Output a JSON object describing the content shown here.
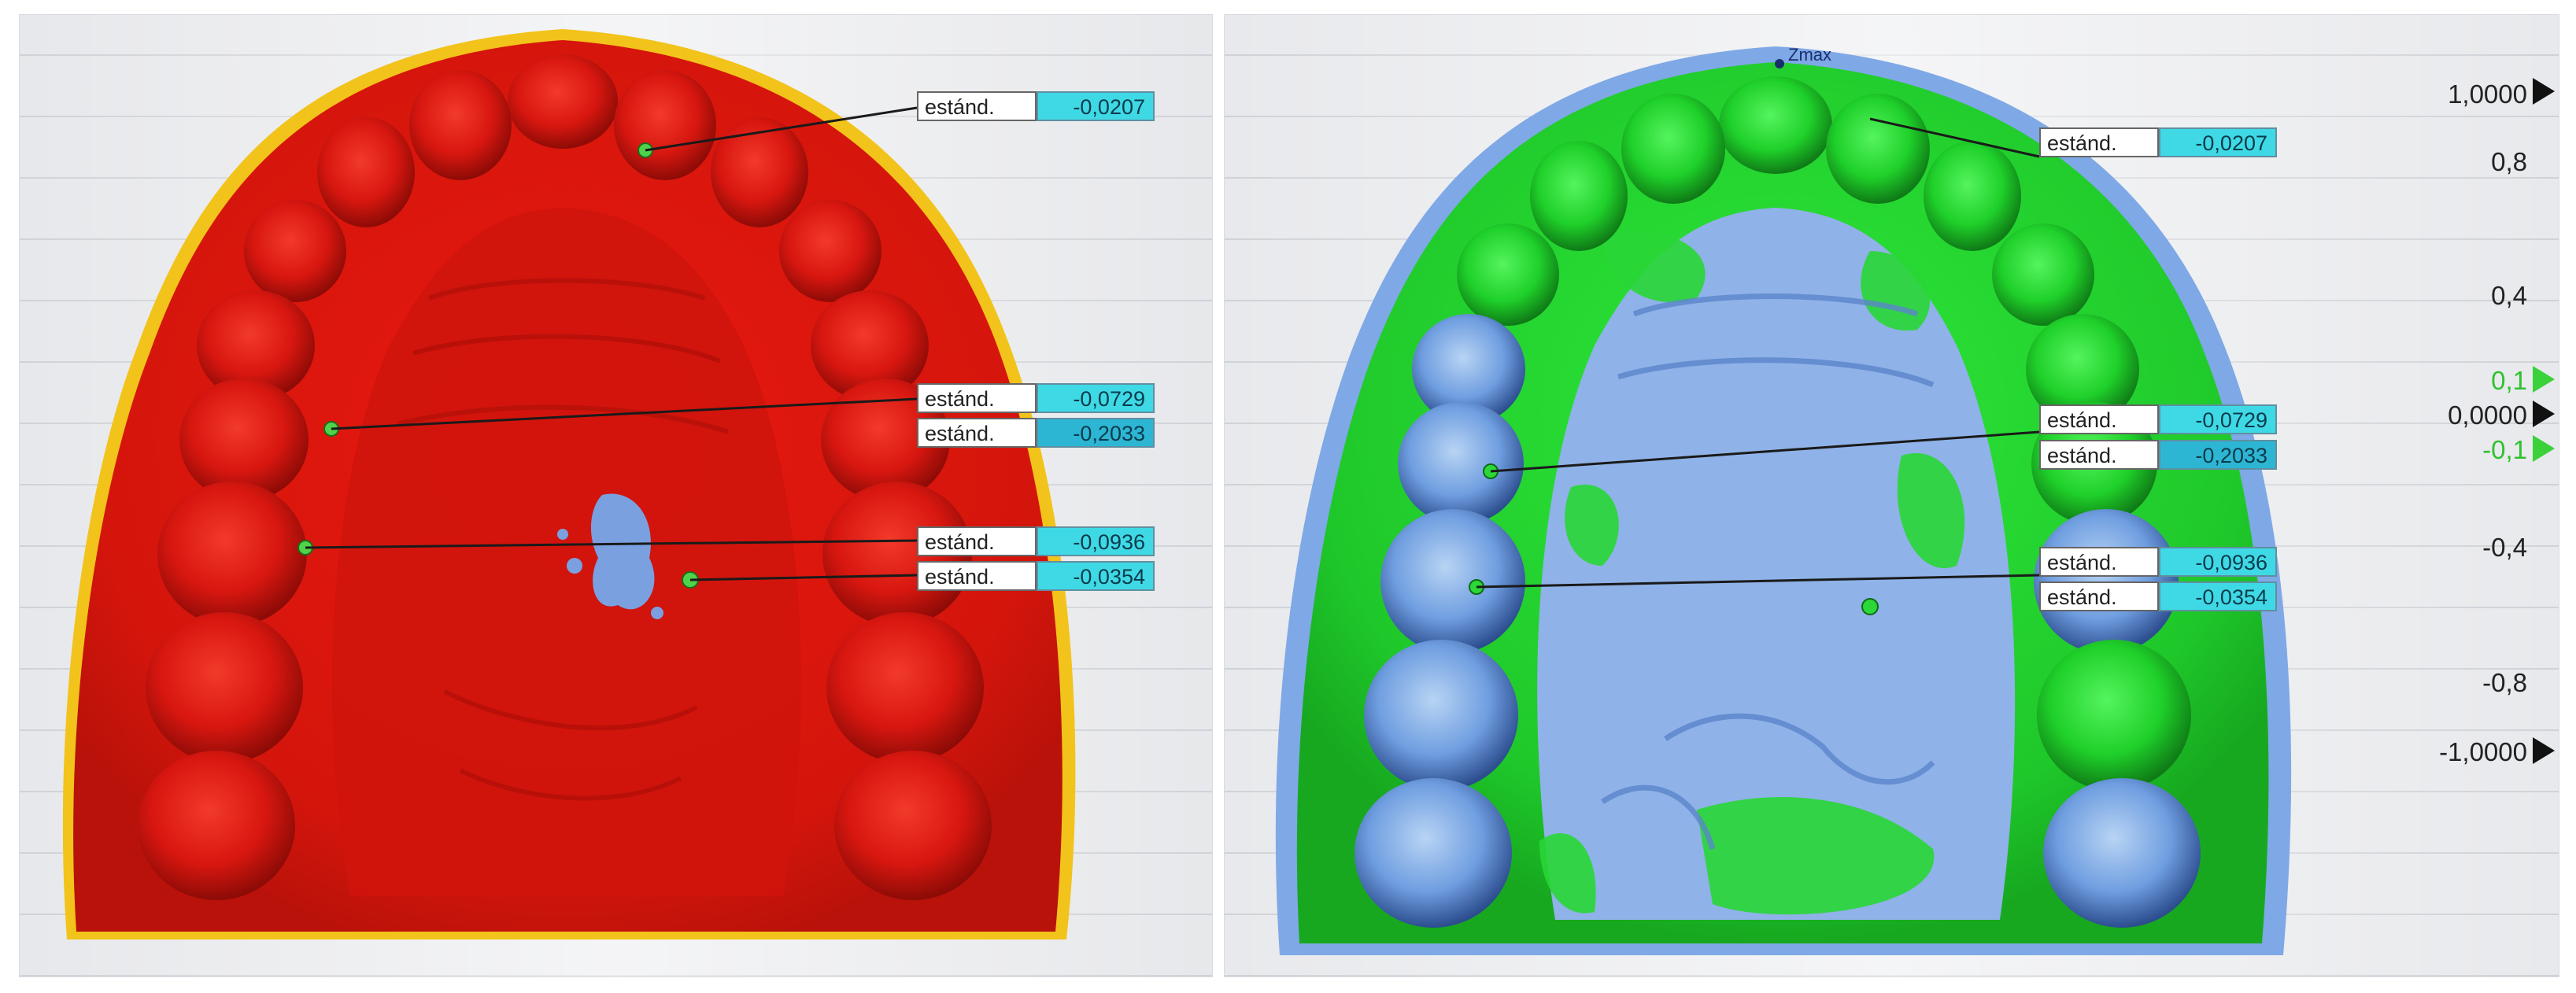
{
  "panels": [
    {
      "callouts": [
        {
          "label": "estánd.",
          "value": "-0,0207"
        },
        {
          "label": "estánd.",
          "value": "-0,0729"
        },
        {
          "label": "estánd.",
          "value": "-0,2033"
        },
        {
          "label": "estánd.",
          "value": "-0,0936"
        },
        {
          "label": "estánd.",
          "value": "-0,0354"
        }
      ]
    },
    {
      "top_marker_text": "Zmax",
      "callouts": [
        {
          "label": "estánd.",
          "value": "-0,0207"
        },
        {
          "label": "estánd.",
          "value": "-0,0729"
        },
        {
          "label": "estánd.",
          "value": "-0,2033"
        },
        {
          "label": "estánd.",
          "value": "-0,0936"
        },
        {
          "label": "estánd.",
          "value": "-0,0354"
        }
      ],
      "color_scale": {
        "max_label": "1,0000",
        "labels": [
          "0,8",
          "0,4",
          "0,1",
          "0,0000",
          "-0,1",
          "-0,4",
          "-0,8"
        ],
        "min_label": "-1,0000",
        "colors": {
          "overflow_high": "#e7141b",
          "overflow_low": "#1f3ee6",
          "tolerance_band": "#22d438",
          "segments_top_to_bottom": [
            "#ea1a14",
            "#ee2a14",
            "#f03a14",
            "#f24c16",
            "#f45e18",
            "#f6761a",
            "#f8901c",
            "#f9aa1e",
            "#fbc324",
            "#fbdb2a",
            "#22d438",
            "#22d438",
            "#26e3ee",
            "#22c9ee",
            "#1eb0ee",
            "#1a96ec",
            "#187ce8",
            "#1662e4",
            "#1448e0",
            "#1230d8"
          ]
        }
      }
    }
  ]
}
